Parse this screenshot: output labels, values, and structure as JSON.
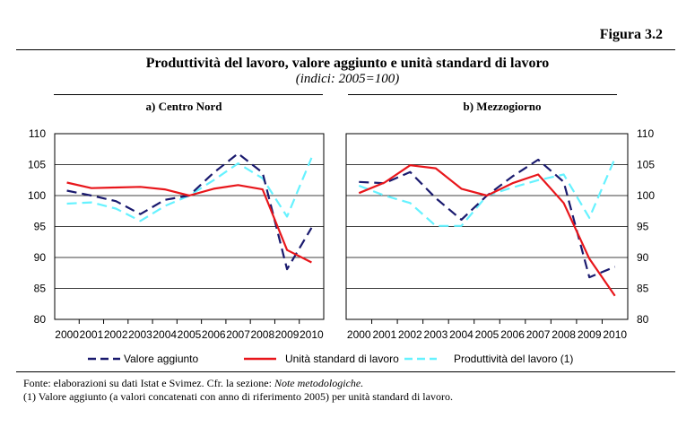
{
  "figure_label": "Figura 3.2",
  "title": "Produttività del lavoro, valore aggiunto e unità standard di lavoro",
  "subtitle": "(indici: 2005=100)",
  "legend": [
    {
      "label": "Valore aggiunto",
      "color": "#1a1a6e",
      "style": "dashed"
    },
    {
      "label": "Unità standard di lavoro",
      "color": "#e8161b",
      "style": "solid"
    },
    {
      "label": "Produttività del lavoro (1)",
      "color": "#66f2ff",
      "style": "dashed"
    }
  ],
  "notes": {
    "source_prefix": "Fonte: elaborazioni su dati Istat e Svimez. Cfr. la sezione: ",
    "source_italic": "Note metodologiche.",
    "footnote": "(1) Valore aggiunto (a valori concatenati con anno di riferimento 2005) per unità standard di lavoro."
  },
  "chart_data": [
    {
      "type": "line",
      "title": "a) Centro Nord",
      "categories": [
        "2000",
        "2001",
        "2002",
        "2003",
        "2004",
        "2005",
        "2006",
        "2007",
        "2008",
        "2009",
        "2010"
      ],
      "ylim": [
        80,
        110
      ],
      "yticks": [
        80,
        85,
        90,
        95,
        100,
        105,
        110
      ],
      "grid": true,
      "axis_side": "left",
      "series": [
        {
          "name": "Valore aggiunto",
          "values": [
            100.8,
            100.0,
            99.1,
            97.0,
            99.3,
            100.0,
            103.7,
            106.8,
            103.7,
            88.1,
            94.8
          ]
        },
        {
          "name": "Unità standard di lavoro",
          "values": [
            102.1,
            101.2,
            101.3,
            101.4,
            101.0,
            100.0,
            101.1,
            101.7,
            101.0,
            91.2,
            89.2
          ]
        },
        {
          "name": "Produttività del lavoro (1)",
          "values": [
            98.7,
            98.9,
            97.9,
            95.9,
            98.3,
            100.0,
            102.5,
            105.2,
            102.8,
            96.6,
            106.1
          ]
        }
      ]
    },
    {
      "type": "line",
      "title": "b) Mezzogiorno",
      "categories": [
        "2000",
        "2001",
        "2002",
        "2003",
        "2004",
        "2005",
        "2006",
        "2007",
        "2008",
        "2009",
        "2010"
      ],
      "ylim": [
        80,
        110
      ],
      "yticks": [
        80,
        85,
        90,
        95,
        100,
        105,
        110
      ],
      "grid": true,
      "axis_side": "right",
      "series": [
        {
          "name": "Valore aggiunto",
          "values": [
            102.2,
            102.0,
            103.8,
            99.6,
            96.1,
            100.0,
            103.1,
            105.8,
            102.2,
            86.8,
            88.5
          ]
        },
        {
          "name": "Unità standard di lavoro",
          "values": [
            100.4,
            102.1,
            104.9,
            104.4,
            101.1,
            100.0,
            102.0,
            103.4,
            98.8,
            89.8,
            83.8
          ]
        },
        {
          "name": "Produttività del lavoro (1)",
          "values": [
            101.6,
            100.0,
            98.8,
            95.1,
            95.1,
            100.0,
            101.3,
            102.5,
            103.4,
            96.4,
            106.0
          ]
        }
      ]
    }
  ]
}
